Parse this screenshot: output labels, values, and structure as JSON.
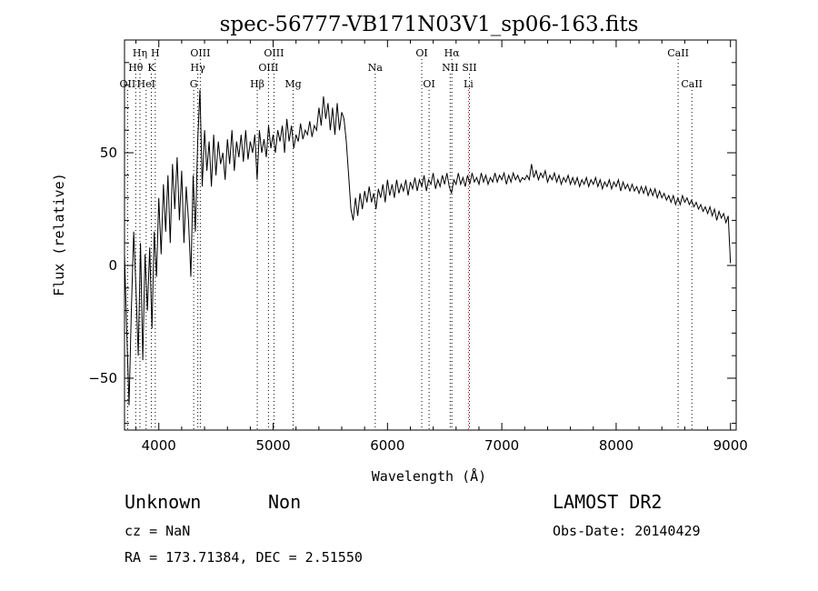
{
  "chart_data": {
    "type": "line",
    "title": "spec-56777-VB171N03V1_sp06-163.fits",
    "xlabel": "Wavelength (Å)",
    "ylabel": "Flux (relative)",
    "xlim": [
      3700,
      9050
    ],
    "ylim": [
      -73,
      100
    ],
    "xticks": [
      4000,
      5000,
      6000,
      7000,
      8000,
      9000
    ],
    "yticks": [
      -50,
      0,
      50
    ],
    "grid": false,
    "series": [
      {
        "color": "#000000",
        "points": [
          [
            3700,
            5
          ],
          [
            3720,
            -30
          ],
          [
            3740,
            -62
          ],
          [
            3760,
            -20
          ],
          [
            3780,
            15
          ],
          [
            3800,
            -10
          ],
          [
            3820,
            -40
          ],
          [
            3840,
            10
          ],
          [
            3860,
            -42
          ],
          [
            3880,
            5
          ],
          [
            3900,
            -20
          ],
          [
            3920,
            8
          ],
          [
            3940,
            -28
          ],
          [
            3960,
            15
          ],
          [
            3980,
            -5
          ],
          [
            4000,
            30
          ],
          [
            4020,
            5
          ],
          [
            4040,
            36
          ],
          [
            4060,
            15
          ],
          [
            4080,
            40
          ],
          [
            4100,
            10
          ],
          [
            4120,
            45
          ],
          [
            4140,
            25
          ],
          [
            4160,
            48
          ],
          [
            4180,
            20
          ],
          [
            4200,
            42
          ],
          [
            4220,
            10
          ],
          [
            4240,
            35
          ],
          [
            4260,
            20
          ],
          [
            4280,
            -5
          ],
          [
            4300,
            40
          ],
          [
            4320,
            15
          ],
          [
            4340,
            55
          ],
          [
            4360,
            78
          ],
          [
            4380,
            35
          ],
          [
            4400,
            60
          ],
          [
            4420,
            42
          ],
          [
            4440,
            55
          ],
          [
            4460,
            35
          ],
          [
            4480,
            58
          ],
          [
            4500,
            40
          ],
          [
            4520,
            55
          ],
          [
            4540,
            45
          ],
          [
            4560,
            50
          ],
          [
            4580,
            38
          ],
          [
            4600,
            56
          ],
          [
            4620,
            45
          ],
          [
            4640,
            60
          ],
          [
            4660,
            42
          ],
          [
            4680,
            55
          ],
          [
            4700,
            48
          ],
          [
            4720,
            58
          ],
          [
            4740,
            46
          ],
          [
            4760,
            60
          ],
          [
            4780,
            47
          ],
          [
            4800,
            55
          ],
          [
            4820,
            50
          ],
          [
            4840,
            58
          ],
          [
            4860,
            38
          ],
          [
            4880,
            60
          ],
          [
            4900,
            50
          ],
          [
            4920,
            56
          ],
          [
            4940,
            48
          ],
          [
            4960,
            62
          ],
          [
            4980,
            52
          ],
          [
            5000,
            58
          ],
          [
            5020,
            50
          ],
          [
            5040,
            60
          ],
          [
            5060,
            55
          ],
          [
            5080,
            62
          ],
          [
            5100,
            50
          ],
          [
            5120,
            65
          ],
          [
            5140,
            55
          ],
          [
            5160,
            62
          ],
          [
            5180,
            52
          ],
          [
            5200,
            58
          ],
          [
            5220,
            55
          ],
          [
            5240,
            63
          ],
          [
            5260,
            56
          ],
          [
            5280,
            60
          ],
          [
            5300,
            58
          ],
          [
            5320,
            64
          ],
          [
            5340,
            57
          ],
          [
            5360,
            62
          ],
          [
            5380,
            60
          ],
          [
            5400,
            70
          ],
          [
            5420,
            62
          ],
          [
            5440,
            75
          ],
          [
            5460,
            65
          ],
          [
            5480,
            72
          ],
          [
            5500,
            60
          ],
          [
            5520,
            70
          ],
          [
            5540,
            58
          ],
          [
            5560,
            72
          ],
          [
            5580,
            60
          ],
          [
            5600,
            68
          ],
          [
            5620,
            65
          ],
          [
            5640,
            55
          ],
          [
            5660,
            40
          ],
          [
            5680,
            25
          ],
          [
            5700,
            20
          ],
          [
            5720,
            30
          ],
          [
            5740,
            22
          ],
          [
            5760,
            32
          ],
          [
            5780,
            25
          ],
          [
            5800,
            33
          ],
          [
            5820,
            28
          ],
          [
            5840,
            35
          ],
          [
            5860,
            28
          ],
          [
            5880,
            32
          ],
          [
            5900,
            25
          ],
          [
            5920,
            34
          ],
          [
            5940,
            30
          ],
          [
            5960,
            36
          ],
          [
            5980,
            28
          ],
          [
            6000,
            38
          ],
          [
            6020,
            31
          ],
          [
            6040,
            36
          ],
          [
            6060,
            30
          ],
          [
            6080,
            38
          ],
          [
            6100,
            32
          ],
          [
            6120,
            36
          ],
          [
            6140,
            33
          ],
          [
            6160,
            38
          ],
          [
            6180,
            31
          ],
          [
            6200,
            37
          ],
          [
            6220,
            34
          ],
          [
            6240,
            39
          ],
          [
            6260,
            33
          ],
          [
            6280,
            38
          ],
          [
            6300,
            35
          ],
          [
            6320,
            40
          ],
          [
            6340,
            33
          ],
          [
            6360,
            38
          ],
          [
            6380,
            36
          ],
          [
            6400,
            41
          ],
          [
            6420,
            34
          ],
          [
            6440,
            38
          ],
          [
            6460,
            35
          ],
          [
            6480,
            40
          ],
          [
            6500,
            36
          ],
          [
            6520,
            41
          ],
          [
            6540,
            35
          ],
          [
            6560,
            32
          ],
          [
            6580,
            38
          ],
          [
            6600,
            36
          ],
          [
            6620,
            41
          ],
          [
            6640,
            36
          ],
          [
            6660,
            39
          ],
          [
            6680,
            35
          ],
          [
            6700,
            40
          ],
          [
            6720,
            36
          ],
          [
            6740,
            41
          ],
          [
            6760,
            37
          ],
          [
            6780,
            39
          ],
          [
            6800,
            36
          ],
          [
            6820,
            41
          ],
          [
            6840,
            37
          ],
          [
            6860,
            40
          ],
          [
            6880,
            36
          ],
          [
            6900,
            39
          ],
          [
            6920,
            37
          ],
          [
            6940,
            41
          ],
          [
            6960,
            37
          ],
          [
            6980,
            40
          ],
          [
            7000,
            38
          ],
          [
            7020,
            41
          ],
          [
            7040,
            36
          ],
          [
            7060,
            40
          ],
          [
            7080,
            37
          ],
          [
            7100,
            41
          ],
          [
            7120,
            38
          ],
          [
            7140,
            40
          ],
          [
            7160,
            37
          ],
          [
            7180,
            39
          ],
          [
            7200,
            38
          ],
          [
            7220,
            40
          ],
          [
            7240,
            38
          ],
          [
            7260,
            45
          ],
          [
            7280,
            39
          ],
          [
            7300,
            42
          ],
          [
            7320,
            38
          ],
          [
            7340,
            41
          ],
          [
            7360,
            39
          ],
          [
            7380,
            42
          ],
          [
            7400,
            37
          ],
          [
            7420,
            40
          ],
          [
            7440,
            38
          ],
          [
            7460,
            41
          ],
          [
            7480,
            37
          ],
          [
            7500,
            40
          ],
          [
            7520,
            36
          ],
          [
            7540,
            39
          ],
          [
            7560,
            37
          ],
          [
            7580,
            40
          ],
          [
            7600,
            36
          ],
          [
            7620,
            39
          ],
          [
            7640,
            36
          ],
          [
            7660,
            39
          ],
          [
            7680,
            35
          ],
          [
            7700,
            38
          ],
          [
            7720,
            36
          ],
          [
            7740,
            39
          ],
          [
            7760,
            35
          ],
          [
            7780,
            38
          ],
          [
            7800,
            36
          ],
          [
            7820,
            39
          ],
          [
            7840,
            35
          ],
          [
            7860,
            38
          ],
          [
            7880,
            34
          ],
          [
            7900,
            37
          ],
          [
            7920,
            35
          ],
          [
            7940,
            38
          ],
          [
            7960,
            34
          ],
          [
            7980,
            37
          ],
          [
            8000,
            35
          ],
          [
            8020,
            38
          ],
          [
            8040,
            33
          ],
          [
            8060,
            37
          ],
          [
            8080,
            34
          ],
          [
            8100,
            36
          ],
          [
            8120,
            33
          ],
          [
            8140,
            36
          ],
          [
            8160,
            33
          ],
          [
            8180,
            35
          ],
          [
            8200,
            32
          ],
          [
            8220,
            35
          ],
          [
            8240,
            32
          ],
          [
            8260,
            35
          ],
          [
            8280,
            31
          ],
          [
            8300,
            34
          ],
          [
            8320,
            31
          ],
          [
            8340,
            34
          ],
          [
            8360,
            30
          ],
          [
            8380,
            33
          ],
          [
            8400,
            30
          ],
          [
            8420,
            32
          ],
          [
            8440,
            29
          ],
          [
            8460,
            31
          ],
          [
            8480,
            28
          ],
          [
            8500,
            31
          ],
          [
            8520,
            27
          ],
          [
            8540,
            30
          ],
          [
            8560,
            27
          ],
          [
            8580,
            31
          ],
          [
            8600,
            28
          ],
          [
            8620,
            30
          ],
          [
            8640,
            27
          ],
          [
            8660,
            29
          ],
          [
            8680,
            26
          ],
          [
            8700,
            28
          ],
          [
            8720,
            25
          ],
          [
            8740,
            27
          ],
          [
            8760,
            24
          ],
          [
            8780,
            26
          ],
          [
            8800,
            23
          ],
          [
            8820,
            26
          ],
          [
            8840,
            22
          ],
          [
            8860,
            25
          ],
          [
            8880,
            20
          ],
          [
            8900,
            24
          ],
          [
            8920,
            21
          ],
          [
            8940,
            23
          ],
          [
            8960,
            19
          ],
          [
            8980,
            22
          ],
          [
            9000,
            1
          ]
        ]
      }
    ],
    "line_markers": [
      {
        "label": "OII",
        "x": 3727,
        "row": 3,
        "color": "#000000"
      },
      {
        "label": "Hθ",
        "x": 3798,
        "row": 2,
        "color": "#000000"
      },
      {
        "label": "Hη",
        "x": 3835,
        "row": 1,
        "color": "#000000"
      },
      {
        "label": "HeI",
        "x": 3889,
        "row": 3,
        "color": "#000000"
      },
      {
        "label": "K",
        "x": 3934,
        "row": 2,
        "color": "#000000"
      },
      {
        "label": "H",
        "x": 3969,
        "row": 1,
        "color": "#000000"
      },
      {
        "label": "G",
        "x": 4305,
        "row": 3,
        "color": "#000000"
      },
      {
        "label": "Hγ",
        "x": 4341,
        "row": 2,
        "color": "#000000"
      },
      {
        "label": "OIII",
        "x": 4363,
        "row": 1,
        "color": "#000000"
      },
      {
        "label": "Hβ",
        "x": 4861,
        "row": 3,
        "color": "#000000"
      },
      {
        "label": "OIII",
        "x": 4959,
        "row": 2,
        "color": "#000000"
      },
      {
        "label": "OIII",
        "x": 5007,
        "row": 1,
        "color": "#000000"
      },
      {
        "label": "Mg",
        "x": 5175,
        "row": 3,
        "color": "#000000"
      },
      {
        "label": "Na",
        "x": 5893,
        "row": 2,
        "color": "#000000"
      },
      {
        "label": "OI",
        "x": 6300,
        "row": 1,
        "color": "#000000"
      },
      {
        "label": "OI",
        "x": 6364,
        "row": 3,
        "color": "#000000"
      },
      {
        "label": "NII",
        "x": 6548,
        "row": 2,
        "color": "#000000"
      },
      {
        "label": "Hα",
        "x": 6563,
        "row": 1,
        "color": "#000000"
      },
      {
        "label": "SII",
        "x": 6717,
        "row": 2,
        "color": "#000000"
      },
      {
        "label": "Li",
        "x": 6708,
        "row": 3,
        "color": "#ff0000"
      },
      {
        "label": "CaII",
        "x": 8542,
        "row": 1,
        "color": "#000000"
      },
      {
        "label": "CaII",
        "x": 8662,
        "row": 3,
        "color": "#000000"
      }
    ]
  },
  "info": {
    "class": "Unknown",
    "subclass": "Non",
    "survey": "LAMOST DR2",
    "cz": "cz = NaN",
    "obs_date": "Obs-Date: 20140429",
    "radec": "RA = 173.71384, DEC =   2.51550"
  }
}
